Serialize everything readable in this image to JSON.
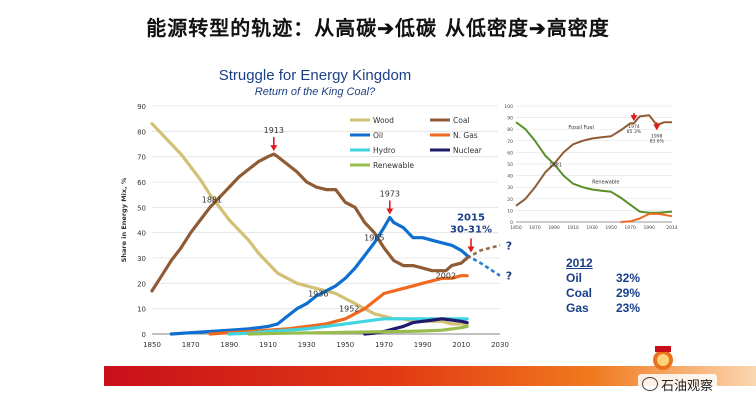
{
  "slide": {
    "title": "能源转型的轨迹：从高碳➔低碳  从低密度➔高密度",
    "watermark": "石油观察"
  },
  "colors": {
    "wood": "#d2c074",
    "coal": "#8f5b35",
    "oil": "#0e6fd0",
    "ngas": "#ef6a1e",
    "hydro": "#3fd4e0",
    "nuclear": "#1f1a6e",
    "renewable": "#98bd4e",
    "title": "#1c3f86",
    "annot": "#e01b1b",
    "stats": "#1a3f88"
  },
  "chart_data": [
    {
      "type": "line",
      "title": "Struggle for Energy Kingdom",
      "subtitle": "Return of the King Coal?",
      "ylabel": "Share in Energy Mix, %",
      "xlim": [
        1850,
        2030
      ],
      "ylim": [
        0,
        90
      ],
      "xticks": [
        1850,
        1870,
        1890,
        1910,
        1930,
        1950,
        1970,
        1990,
        2010,
        2030
      ],
      "yticks": [
        0,
        10,
        20,
        30,
        40,
        50,
        60,
        70,
        80,
        90
      ],
      "grid": "horizontal",
      "legend": "top-center",
      "series": [
        {
          "name": "Wood",
          "key": "wood",
          "x": [
            1850,
            1855,
            1860,
            1865,
            1870,
            1875,
            1880,
            1885,
            1890,
            1895,
            1900,
            1905,
            1910,
            1915,
            1920,
            1925,
            1930,
            1935,
            1940,
            1945,
            1950,
            1955,
            1960,
            1965,
            1970,
            1975,
            1980,
            1985,
            1990,
            1995,
            2000,
            2005,
            2010,
            2013
          ],
          "y": [
            83,
            79,
            75,
            71,
            66,
            61,
            55,
            50,
            45,
            41,
            37,
            32,
            28,
            24,
            22,
            20,
            19,
            18,
            17,
            16,
            14,
            12,
            10,
            8,
            7,
            6,
            6,
            5,
            5,
            5,
            5,
            4,
            4,
            4
          ]
        },
        {
          "name": "Coal",
          "key": "coal",
          "x": [
            1850,
            1855,
            1860,
            1865,
            1870,
            1875,
            1880,
            1885,
            1890,
            1895,
            1900,
            1905,
            1910,
            1913,
            1915,
            1920,
            1925,
            1930,
            1935,
            1940,
            1945,
            1950,
            1955,
            1960,
            1965,
            1970,
            1975,
            1980,
            1985,
            1990,
            1995,
            2000,
            2002,
            2005,
            2010,
            2013
          ],
          "y": [
            17,
            23,
            29,
            34,
            40,
            45,
            50,
            54,
            58,
            62,
            65,
            68,
            70,
            71,
            70,
            67,
            64,
            60,
            58,
            57,
            57,
            52,
            50,
            44,
            40,
            34,
            29,
            27,
            27,
            26,
            25,
            25,
            25,
            27,
            28,
            30
          ]
        },
        {
          "name": "Oil",
          "key": "oil",
          "x": [
            1860,
            1870,
            1880,
            1890,
            1900,
            1905,
            1910,
            1915,
            1920,
            1925,
            1930,
            1935,
            1940,
            1945,
            1950,
            1955,
            1960,
            1965,
            1970,
            1973,
            1975,
            1980,
            1985,
            1990,
            1995,
            2000,
            2005,
            2010,
            2013
          ],
          "y": [
            0,
            0.5,
            1,
            1.5,
            2,
            2.5,
            3,
            4,
            7,
            10,
            12,
            15,
            17,
            19,
            22,
            26,
            31,
            36,
            42,
            46,
            44,
            42,
            38,
            38,
            37,
            36,
            35,
            33,
            31
          ]
        },
        {
          "name": "N. Gas",
          "key": "ngas",
          "x": [
            1880,
            1890,
            1900,
            1910,
            1920,
            1930,
            1940,
            1950,
            1960,
            1965,
            1970,
            1975,
            1980,
            1985,
            1990,
            1995,
            2000,
            2005,
            2010,
            2013
          ],
          "y": [
            0,
            0.5,
            1,
            1.5,
            2,
            3,
            4,
            6,
            10,
            13,
            16,
            17,
            18,
            19,
            20,
            21,
            22,
            22,
            23,
            23
          ]
        },
        {
          "name": "Hydro",
          "key": "hydro",
          "x": [
            1890,
            1900,
            1910,
            1920,
            1930,
            1940,
            1950,
            1960,
            1970,
            1980,
            1990,
            2000,
            2010,
            2013
          ],
          "y": [
            0,
            0.3,
            1,
            1.5,
            2,
            3,
            4,
            5,
            6,
            6,
            6,
            6,
            6,
            6
          ]
        },
        {
          "name": "Nuclear",
          "key": "nuclear",
          "x": [
            1960,
            1965,
            1970,
            1975,
            1980,
            1985,
            1990,
            1995,
            2000,
            2005,
            2010,
            2013
          ],
          "y": [
            0,
            0.3,
            1,
            2,
            3,
            4.5,
            5,
            5.5,
            6,
            5.5,
            5,
            4.5
          ]
        },
        {
          "name": "Renewable",
          "key": "renewable",
          "x": [
            1900,
            1920,
            1940,
            1960,
            1980,
            1990,
            2000,
            2005,
            2010,
            2013
          ],
          "y": [
            0,
            0.3,
            0.5,
            0.8,
            1,
            1.2,
            1.5,
            2,
            2.5,
            3
          ]
        }
      ],
      "projections": [
        {
          "key": "oil",
          "x": [
            2013,
            2020,
            2030
          ],
          "y": [
            31,
            28,
            23
          ]
        },
        {
          "key": "coal",
          "x": [
            2013,
            2020,
            2030
          ],
          "y": [
            30,
            33,
            35
          ]
        }
      ],
      "projection_marks": [
        {
          "key": "coal",
          "x": 2033,
          "y": 35,
          "text": "?"
        },
        {
          "key": "oil",
          "x": 2033,
          "y": 23,
          "text": "?"
        }
      ],
      "annotations": [
        {
          "text": "1913",
          "x": 1913,
          "y": 71,
          "arrow": true
        },
        {
          "text": "1973",
          "x": 1973,
          "y": 46,
          "arrow": true
        },
        {
          "text": "2015",
          "x": 2015,
          "y": 31,
          "arrow": true,
          "line2": "30-31%",
          "bold": true,
          "color": "#1c3f86"
        },
        {
          "text": "1881",
          "x": 1881,
          "y": 55
        },
        {
          "text": "1965",
          "x": 1965,
          "y": 40
        },
        {
          "text": "1936",
          "x": 1936,
          "y": 18
        },
        {
          "text": "1952",
          "x": 1952,
          "y": 12
        },
        {
          "text": "2002",
          "x": 2002,
          "y": 25
        }
      ]
    },
    {
      "type": "line",
      "xlim": [
        1850,
        2014
      ],
      "ylim": [
        0,
        100
      ],
      "xticks": [
        1850,
        1870,
        1890,
        1910,
        1930,
        1950,
        1970,
        1990,
        2014
      ],
      "xtick_labels": [
        "1850",
        "1870",
        "1890",
        "1910",
        "1930",
        "1950",
        "1970",
        "1990",
        "2014"
      ],
      "yticks": [
        0,
        10,
        20,
        30,
        40,
        50,
        60,
        70,
        80,
        90,
        100
      ],
      "series": [
        {
          "key": "wood",
          "name": "Renewable",
          "x": [
            1850,
            1860,
            1870,
            1881,
            1890,
            1900,
            1910,
            1920,
            1930,
            1940,
            1950,
            1960,
            1970,
            1980,
            1990,
            2000,
            2014
          ],
          "y": [
            86,
            80,
            70,
            57,
            50,
            40,
            33,
            30,
            28,
            27,
            26,
            21,
            15,
            9,
            8,
            8,
            9
          ]
        },
        {
          "key": "coal",
          "name": "Fossil Fuel",
          "x": [
            1850,
            1860,
            1870,
            1881,
            1890,
            1900,
            1910,
            1920,
            1930,
            1940,
            1950,
            1960,
            1970,
            1974,
            1980,
            1990,
            1998,
            2006,
            2014
          ],
          "y": [
            14,
            20,
            30,
            43,
            50,
            60,
            67,
            70,
            72,
            73,
            74,
            79,
            85,
            85.3,
            91,
            92,
            83.6,
            86,
            86
          ]
        },
        {
          "key": "ngas",
          "name": "Nuclear",
          "x": [
            1960,
            1970,
            1980,
            1990,
            2000,
            2014
          ],
          "y": [
            0,
            0.5,
            3,
            7,
            7,
            5
          ]
        }
      ],
      "labels": [
        {
          "text": "Fossil Fuel",
          "x": 1905,
          "y": 80
        },
        {
          "text": "Renewable",
          "x": 1930,
          "y": 33
        },
        {
          "text": "1881",
          "x": 1885,
          "y": 48
        }
      ],
      "annotations": [
        {
          "text": "1974",
          "line2": "85.3%",
          "x": 1974,
          "y": 87,
          "arrow": true
        },
        {
          "text": "1998",
          "line2": "83.6%",
          "x": 1998,
          "y": 79,
          "arrow": true
        }
      ]
    }
  ],
  "stats": {
    "year": "2012",
    "rows": [
      {
        "label": "Oil",
        "value": "32%"
      },
      {
        "label": "Coal",
        "value": "29%"
      },
      {
        "label": "Gas",
        "value": "23%"
      }
    ]
  }
}
